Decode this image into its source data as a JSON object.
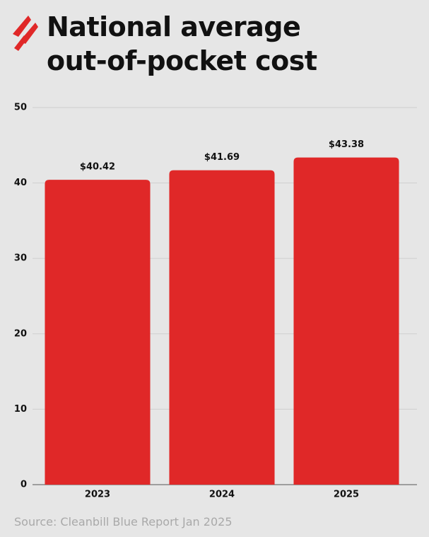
{
  "chart_data": {
    "type": "bar",
    "title": "National average out-of-pocket cost",
    "categories": [
      "2023",
      "2024",
      "2025"
    ],
    "values": [
      40.42,
      41.69,
      43.38
    ],
    "value_labels": [
      "$40.42",
      "$41.69",
      "$43.38"
    ],
    "color": "#e02828",
    "ylim": [
      0,
      50
    ],
    "yticks": [
      0,
      10,
      20,
      30,
      40,
      50
    ],
    "grid": true,
    "source": "Source: Cleanbill Blue Report Jan 2025"
  }
}
